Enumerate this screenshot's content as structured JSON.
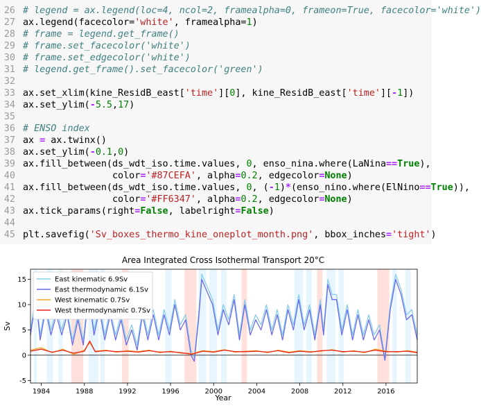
{
  "code": {
    "lines": [
      {
        "n": "26",
        "src": "<span class='cm'># legend = ax.legend(loc=4, ncol=2, framealpha=0, frameon=True, facecolor='white')</span>"
      },
      {
        "n": "27",
        "src": "ax.legend(facecolor=<span class='st'>'white'</span>, framealpha=<span class='nm'>1</span>)"
      },
      {
        "n": "28",
        "src": "<span class='cm'># frame = legend.get_frame()</span>"
      },
      {
        "n": "29",
        "src": "<span class='cm'># frame.set_facecolor('white')</span>"
      },
      {
        "n": "30",
        "src": "<span class='cm'># frame.set_edgecolor('white')</span>"
      },
      {
        "n": "31",
        "src": "<span class='cm'># legend.get_frame().set_facecolor('green')</span>"
      },
      {
        "n": "32",
        "src": ""
      },
      {
        "n": "33",
        "src": "ax.set_xlim(kine_ResidB_east[<span class='st'>'time'</span>][<span class='nm'>0</span>], kine_ResidB_east[<span class='st'>'time'</span>][<span class='op'>-</span><span class='nm'>1</span>])"
      },
      {
        "n": "34",
        "src": "ax.set_ylim(<span class='op'>-</span><span class='nm'>5.5</span>,<span class='nm'>17</span>)"
      },
      {
        "n": "35",
        "src": ""
      },
      {
        "n": "36",
        "src": "<span class='cm'># ENSO index</span>"
      },
      {
        "n": "37",
        "src": "ax <span class='op'>=</span> ax.twinx()"
      },
      {
        "n": "38",
        "src": "ax.set_ylim(<span class='op'>-</span><span class='nm'>0.1</span>,<span class='nm'>0</span>)"
      },
      {
        "n": "39",
        "src": "ax.fill_between(ds_wdt_iso.time.values, <span class='nm'>0</span>, enso_nina.where(LaNina<span class='op'>==</span><span class='kw'>True</span>),"
      },
      {
        "n": "40",
        "src": "                color<span class='op'>=</span><span class='st'>'#87CEFA'</span>, alpha<span class='op'>=</span><span class='nm'>0.2</span>, edgecolor<span class='op'>=</span><span class='kw'>None</span>)"
      },
      {
        "n": "41",
        "src": "ax.fill_between(ds_wdt_iso.time.values, <span class='nm'>0</span>, (<span class='op'>-</span><span class='nm'>1</span>)<span class='op'>*</span>(enso_nino.where(ElNino<span class='op'>==</span><span class='kw'>True</span>)),"
      },
      {
        "n": "42",
        "src": "                color<span class='op'>=</span><span class='st'>'#FF6347'</span>, alpha<span class='op'>=</span><span class='nm'>0.2</span>, edgecolor<span class='op'>=</span><span class='kw'>None</span>)"
      },
      {
        "n": "43",
        "src": "ax.tick_params(right<span class='op'>=</span><span class='kw'>False</span>, labelright<span class='op'>=</span><span class='kw'>False</span>)"
      },
      {
        "n": "44",
        "src": ""
      },
      {
        "n": "45",
        "src": "plt.savefig(<span class='st'>'Sv_boxes_thermo_kine_oneplot_month.png'</span>, bbox_inches<span class='op'>=</span><span class='st'>'tight'</span>)"
      }
    ]
  },
  "chart_data": {
    "type": "line",
    "title": "Area Integrated Cross Isothermal Transport 20°C",
    "xlabel": "Year",
    "ylabel": "Sv",
    "xlim": [
      1983.0,
      2018.9
    ],
    "ylim": [
      -5.5,
      17
    ],
    "x_ticks": [
      1984,
      1988,
      1992,
      1996,
      2000,
      2004,
      2008,
      2012,
      2016
    ],
    "y_ticks": [
      -5,
      0,
      5,
      10,
      15
    ],
    "grid": false,
    "legend_position": "top-left",
    "la_nina_periods": [
      [
        1983.3,
        1983.6
      ],
      [
        1984.5,
        1985.1
      ],
      [
        1985.6,
        1986.0
      ],
      [
        1988.4,
        1989.3
      ],
      [
        1989.5,
        1989.9
      ],
      [
        1995.5,
        1996.1
      ],
      [
        1998.6,
        1999.3
      ],
      [
        1999.6,
        2000.3
      ],
      [
        2000.7,
        2001.2
      ],
      [
        2007.5,
        2008.3
      ],
      [
        2008.6,
        2009.1
      ],
      [
        2010.5,
        2011.3
      ],
      [
        2011.6,
        2012.1
      ],
      [
        2016.6,
        2017.0
      ],
      [
        2017.8,
        2018.3
      ]
    ],
    "el_nino_periods": [
      [
        1986.8,
        1987.9
      ],
      [
        1991.5,
        1992.1
      ],
      [
        1997.3,
        1998.4
      ],
      [
        2002.6,
        2003.1
      ],
      [
        2009.6,
        2010.1
      ],
      [
        2015.2,
        2016.3
      ]
    ],
    "series": [
      {
        "name": "East kinematic 6.9Sv",
        "color": "#87CEEB",
        "x": [
          1983.0,
          1983.5,
          1983.9,
          1984.4,
          1984.9,
          1985.4,
          1985.9,
          1986.4,
          1986.9,
          1987.4,
          1987.9,
          1988.4,
          1988.9,
          1989.4,
          1989.9,
          1990.4,
          1990.9,
          1991.4,
          1991.9,
          1992.4,
          1992.9,
          1993.4,
          1993.9,
          1994.4,
          1994.9,
          1995.4,
          1995.9,
          1996.4,
          1996.9,
          1997.4,
          1997.9,
          1998.2,
          1998.6,
          1998.9,
          1999.3,
          1999.9,
          2000.4,
          2000.9,
          2001.4,
          2001.9,
          2002.4,
          2002.9,
          2003.4,
          2003.9,
          2004.4,
          2004.9,
          2005.4,
          2005.9,
          2006.4,
          2006.9,
          2007.4,
          2007.9,
          2008.4,
          2008.9,
          2009.4,
          2009.9,
          2010.2,
          2010.6,
          2011.0,
          2011.4,
          2011.9,
          2012.4,
          2012.9,
          2013.4,
          2013.9,
          2014.4,
          2014.9,
          2015.4,
          2015.9,
          2016.4,
          2016.9,
          2017.4,
          2017.9,
          2018.4,
          2018.9
        ],
        "values": [
          5,
          12,
          4,
          10,
          5,
          9,
          5,
          9,
          3,
          8,
          3,
          13,
          5,
          10,
          4,
          9,
          4,
          8,
          3,
          6,
          2,
          9,
          4,
          9,
          4,
          9,
          5,
          11,
          6,
          8,
          1,
          -0.5,
          8,
          16,
          14,
          11,
          5,
          10,
          7,
          12,
          4,
          11,
          5,
          8,
          6,
          10,
          5,
          9,
          4,
          10,
          6,
          12,
          6,
          10,
          4,
          11,
          5,
          15,
          12,
          12,
          5,
          10,
          4,
          9,
          4,
          8,
          4,
          6,
          -0.5,
          10,
          16,
          13,
          8,
          9,
          4
        ]
      },
      {
        "name": "East thermodynamic 6.1Sv",
        "color": "#6A6AE8",
        "x": [
          1983.0,
          1983.5,
          1983.9,
          1984.4,
          1984.9,
          1985.4,
          1985.9,
          1986.4,
          1986.9,
          1987.4,
          1987.9,
          1988.4,
          1988.9,
          1989.4,
          1989.9,
          1990.4,
          1990.9,
          1991.4,
          1991.9,
          1992.4,
          1992.9,
          1993.4,
          1993.9,
          1994.4,
          1994.9,
          1995.4,
          1995.9,
          1996.4,
          1996.9,
          1997.4,
          1997.9,
          1998.2,
          1998.6,
          1998.9,
          1999.3,
          1999.9,
          2000.4,
          2000.9,
          2001.4,
          2001.9,
          2002.4,
          2002.9,
          2003.4,
          2003.9,
          2004.4,
          2004.9,
          2005.4,
          2005.9,
          2006.4,
          2006.9,
          2007.4,
          2007.9,
          2008.4,
          2008.9,
          2009.4,
          2009.9,
          2010.2,
          2010.6,
          2011.0,
          2011.4,
          2011.9,
          2012.4,
          2012.9,
          2013.4,
          2013.9,
          2014.4,
          2014.9,
          2015.4,
          2015.9,
          2016.4,
          2016.9,
          2017.4,
          2017.9,
          2018.4,
          2018.9
        ],
        "values": [
          4,
          11,
          3,
          9,
          4,
          8,
          4,
          8,
          2,
          7,
          2,
          12,
          4,
          9,
          3,
          8,
          3,
          7,
          2,
          5,
          1,
          8,
          3,
          8,
          3,
          8,
          4,
          10,
          5,
          7,
          0,
          -1.2,
          7,
          15,
          13,
          10,
          4,
          9,
          6,
          11,
          3,
          10,
          4,
          7,
          5,
          9,
          4,
          8,
          3,
          9,
          5,
          11,
          5,
          9,
          3,
          10,
          4,
          14,
          11,
          11,
          4,
          9,
          3,
          8,
          3,
          7,
          3,
          5,
          -1,
          9,
          15,
          12,
          7,
          8,
          3
        ]
      },
      {
        "name": "West kinematic 0.7Sv",
        "color": "#F5A623",
        "x": [
          1983.0,
          1984.0,
          1985.0,
          1986.0,
          1987.0,
          1988.0,
          1988.5,
          1989.0,
          1990.0,
          1991.0,
          1992.0,
          1993.0,
          1994.0,
          1995.0,
          1996.0,
          1997.0,
          1998.0,
          1999.0,
          2000.0,
          2001.0,
          2002.0,
          2003.0,
          2004.0,
          2005.0,
          2006.0,
          2007.0,
          2008.0,
          2009.0,
          2010.0,
          2011.0,
          2012.0,
          2013.0,
          2014.0,
          2015.0,
          2016.0,
          2017.0,
          2018.0,
          2018.9
        ],
        "values": [
          1,
          1.5,
          0.5,
          1.2,
          0.2,
          1.0,
          2.5,
          0.8,
          1.0,
          0.6,
          0.9,
          0.7,
          1.0,
          0.5,
          0.8,
          0.4,
          0.3,
          0.9,
          0.7,
          1.1,
          0.6,
          0.8,
          0.9,
          0.5,
          1.0,
          0.6,
          0.9,
          0.7,
          0.8,
          1.1,
          0.6,
          0.9,
          0.5,
          1.2,
          0.8,
          0.6,
          0.9,
          0.6
        ]
      },
      {
        "name": "West thermodynamic 0.7Sv",
        "color": "#E8231A",
        "x": [
          1983.0,
          1984.0,
          1985.0,
          1986.0,
          1987.0,
          1988.0,
          1988.5,
          1989.0,
          1990.0,
          1991.0,
          1992.0,
          1993.0,
          1994.0,
          1995.0,
          1996.0,
          1997.0,
          1998.0,
          1999.0,
          2000.0,
          2001.0,
          2002.0,
          2003.0,
          2004.0,
          2005.0,
          2006.0,
          2007.0,
          2008.0,
          2009.0,
          2010.0,
          2011.0,
          2012.0,
          2013.0,
          2014.0,
          2015.0,
          2016.0,
          2017.0,
          2018.0,
          2018.9
        ],
        "values": [
          0.8,
          1.2,
          0.6,
          1.0,
          0.4,
          0.8,
          2.8,
          0.7,
          0.9,
          0.7,
          0.8,
          0.6,
          0.9,
          0.6,
          0.7,
          0.5,
          0.2,
          0.8,
          0.6,
          1.0,
          0.7,
          0.7,
          0.8,
          0.6,
          0.9,
          0.5,
          0.8,
          0.6,
          0.9,
          1.0,
          0.7,
          0.8,
          0.6,
          1.0,
          0.7,
          0.7,
          0.8,
          0.5
        ]
      }
    ]
  }
}
